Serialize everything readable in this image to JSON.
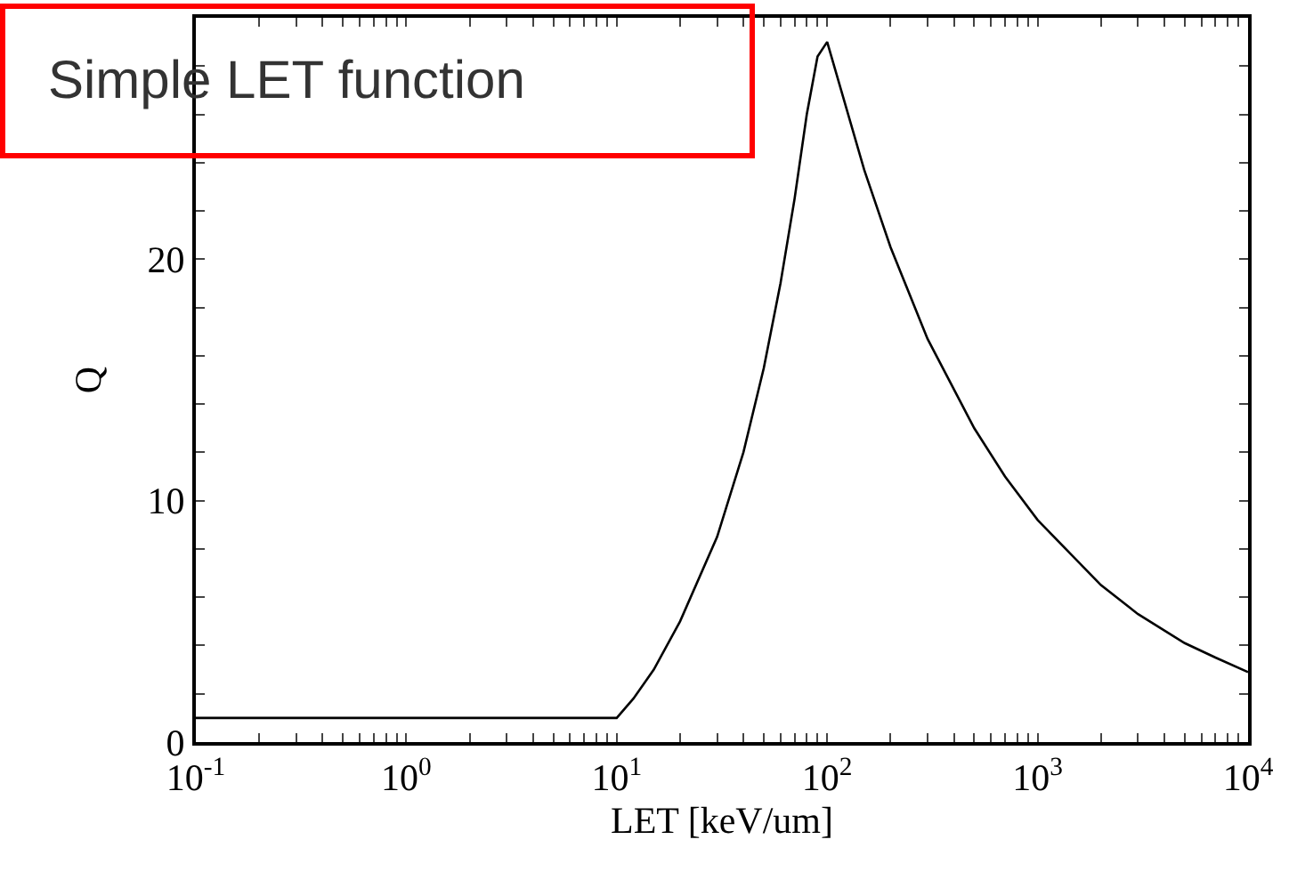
{
  "chart_data": {
    "type": "line",
    "title": "Simple LET function",
    "xlabel": "LET [keV/um]",
    "ylabel": "Q",
    "log": "x",
    "x": [
      0.1,
      1,
      5,
      10,
      12,
      15,
      20,
      30,
      40,
      50,
      60,
      70,
      80,
      90,
      100,
      150,
      200,
      300,
      500,
      700,
      1000,
      2000,
      3000,
      5000,
      7000,
      10000
    ],
    "series": [
      {
        "color": "#000000",
        "values": [
          1,
          1,
          1,
          1,
          1.8,
          3,
          5,
          8.5,
          12,
          15.5,
          19,
          22.5,
          26,
          28.4,
          29,
          23.7,
          20.5,
          16.7,
          13,
          11,
          9.2,
          6.5,
          5.3,
          4.1,
          3.5,
          2.9
        ]
      }
    ],
    "xlim": [
      0.1,
      10000
    ],
    "ylim": [
      0,
      30
    ],
    "xticks": [
      {
        "value": 0.1,
        "label": "10$^{-1}$"
      },
      {
        "value": 1,
        "label": "10$^{0}$"
      },
      {
        "value": 10,
        "label": "10$^{1}$"
      },
      {
        "value": 100,
        "label": "10$^{2}$"
      },
      {
        "value": 1000,
        "label": "10$^{3}$"
      },
      {
        "value": 10000,
        "label": "10$^{4}$"
      },
      {
        "value": 0.2,
        "label": null
      },
      {
        "value": 0.3,
        "label": null
      },
      {
        "value": 0.4,
        "label": null
      },
      {
        "value": 0.5,
        "label": null
      },
      {
        "value": 0.6,
        "label": null
      },
      {
        "value": 0.7,
        "label": null
      },
      {
        "value": 0.8,
        "label": null
      },
      {
        "value": 0.9,
        "label": null
      },
      {
        "value": 2,
        "label": null
      },
      {
        "value": 3,
        "label": null
      },
      {
        "value": 4,
        "label": null
      },
      {
        "value": 5,
        "label": null
      },
      {
        "value": 6,
        "label": null
      },
      {
        "value": 7,
        "label": null
      },
      {
        "value": 8,
        "label": null
      },
      {
        "value": 9,
        "label": null
      },
      {
        "value": 20,
        "label": null
      },
      {
        "value": 30,
        "label": null
      },
      {
        "value": 40,
        "label": null
      },
      {
        "value": 50,
        "label": null
      },
      {
        "value": 60,
        "label": null
      },
      {
        "value": 70,
        "label": null
      },
      {
        "value": 80,
        "label": null
      },
      {
        "value": 90,
        "label": null
      },
      {
        "value": 200,
        "label": null
      },
      {
        "value": 300,
        "label": null
      },
      {
        "value": 400,
        "label": null
      },
      {
        "value": 500,
        "label": null
      },
      {
        "value": 600,
        "label": null
      },
      {
        "value": 700,
        "label": null
      },
      {
        "value": 800,
        "label": null
      },
      {
        "value": 900,
        "label": null
      },
      {
        "value": 2000,
        "label": null
      },
      {
        "value": 3000,
        "label": null
      },
      {
        "value": 4000,
        "label": null
      },
      {
        "value": 5000,
        "label": null
      },
      {
        "value": 6000,
        "label": null
      },
      {
        "value": 7000,
        "label": null
      },
      {
        "value": 8000,
        "label": null
      },
      {
        "value": 9000,
        "label": null
      }
    ],
    "yticks": [
      0,
      10,
      20,
      {
        "value": 2,
        "label": null
      },
      {
        "value": 4,
        "label": null
      },
      {
        "value": 6,
        "label": null
      },
      {
        "value": 8,
        "label": null
      },
      {
        "value": 12,
        "label": null
      },
      {
        "value": 14,
        "label": null
      },
      {
        "value": 16,
        "label": null
      },
      {
        "value": 18,
        "label": null
      },
      {
        "value": 22,
        "label": null
      },
      {
        "value": 24,
        "label": null
      },
      {
        "value": 26,
        "label": null
      },
      {
        "value": 28,
        "label": null
      }
    ],
    "marker": "none",
    "line_style": "solid"
  }
}
